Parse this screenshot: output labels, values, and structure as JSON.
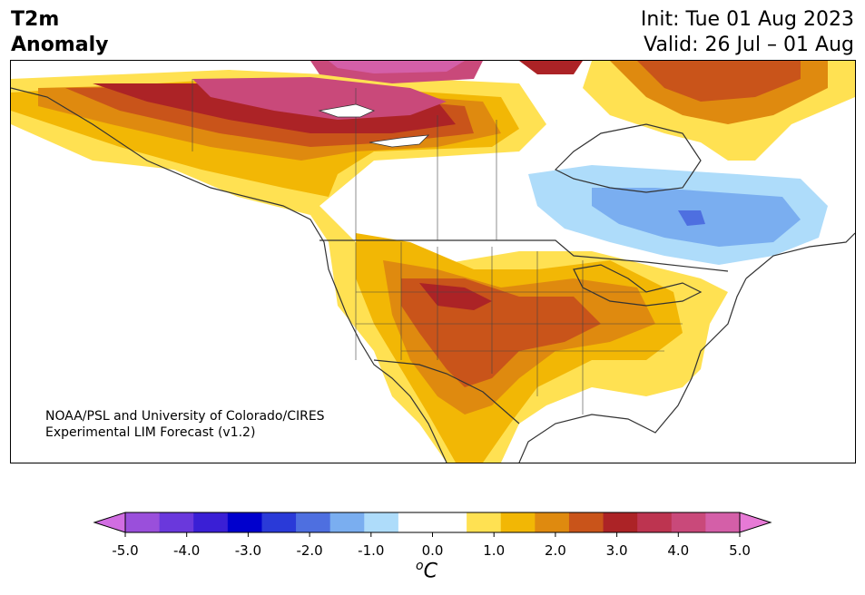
{
  "header": {
    "title_line1": "T2m",
    "title_line2": "Anomaly",
    "init_line": "Init: Tue 01 Aug 2023",
    "valid_line": "Valid: 26 Jul – 01 Aug"
  },
  "map": {
    "credit_line1": "NOAA/PSL and University of Colorado/CIRES",
    "credit_line2": "Experimental LIM Forecast (v1.2)"
  },
  "colorbar": {
    "ticks": [
      "-5.0",
      "-4.0",
      "-3.0",
      "-2.0",
      "-1.0",
      "0.0",
      "1.0",
      "2.0",
      "3.0",
      "4.0",
      "5.0"
    ],
    "unit_base": "C",
    "unit_super": "o",
    "colors": [
      "#d16de2",
      "#9a4fdb",
      "#6a38dc",
      "#3a1fd5",
      "#0000cd",
      "#2a3ad8",
      "#4e6fe0",
      "#7aaef0",
      "#aedcfa",
      "#ffffff",
      "#ffffff",
      "#ffe152",
      "#f2b705",
      "#df8a0f",
      "#c9541a",
      "#ac2326",
      "#bd3450",
      "#c9497a",
      "#d45fa8",
      "#e77ad6"
    ]
  }
}
